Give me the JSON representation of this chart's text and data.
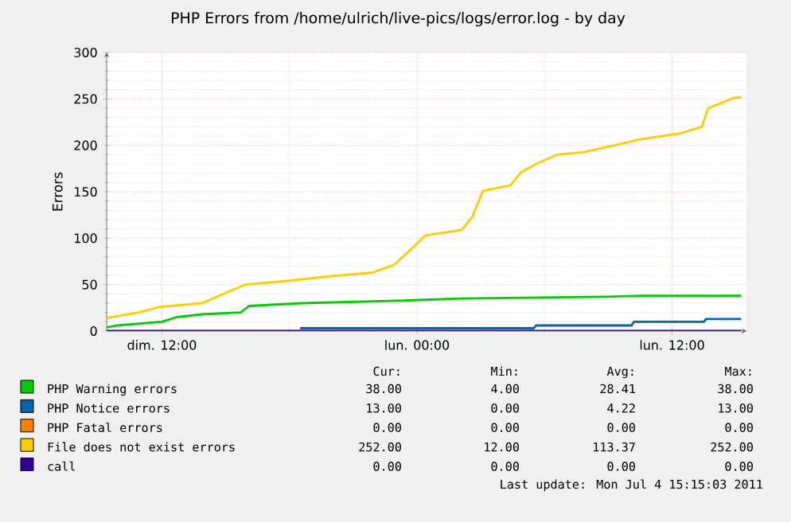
{
  "chart_data": {
    "type": "line",
    "title": "PHP Errors from  /home/ulrich/live-pics/logs/error.log - by day",
    "ylabel": "Errors",
    "xlim": [
      "2011-07-03T09:24",
      "2011-07-04T15:30"
    ],
    "ylim": [
      0,
      300
    ],
    "xticks": [
      {
        "value": "2011-07-03T12:00",
        "label": "dim. 12:00"
      },
      {
        "value": "2011-07-04T00:00",
        "label": "lun. 00:00"
      },
      {
        "value": "2011-07-04T12:00",
        "label": "lun. 12:00"
      }
    ],
    "yticks": [
      0,
      50,
      100,
      150,
      200,
      250,
      300
    ],
    "grid": true,
    "legend": "bottom",
    "marker": "none",
    "line_style": "solid",
    "series": [
      {
        "name": "PHP Warning errors",
        "color": "#00cc00",
        "x": [
          "2011-07-03T09:24",
          "2011-07-03T09:54",
          "2011-07-03T12:00",
          "2011-07-03T12:42",
          "2011-07-03T13:54",
          "2011-07-03T15:42",
          "2011-07-03T16:06",
          "2011-07-03T18:36",
          "2011-07-03T23:36",
          "2011-07-04T02:06",
          "2011-07-04T08:54",
          "2011-07-04T10:36",
          "2011-07-04T15:15"
        ],
        "values": [
          4,
          6,
          10,
          15,
          18,
          20,
          27,
          30,
          33,
          35,
          37,
          38,
          38
        ]
      },
      {
        "name": "PHP Notice errors",
        "color": "#0066b3",
        "x": [
          "2011-07-03T18:30",
          "2011-07-04T05:30",
          "2011-07-04T05:36",
          "2011-07-04T10:06",
          "2011-07-04T10:12",
          "2011-07-04T13:30",
          "2011-07-04T13:36",
          "2011-07-04T15:15"
        ],
        "values": [
          3,
          3,
          6,
          6,
          10,
          10,
          13,
          13
        ]
      },
      {
        "name": "PHP Fatal errors",
        "color": "#ff8000"
      },
      {
        "name": "File does not exist errors",
        "color": "#ffcc00",
        "x": [
          "2011-07-03T09:24",
          "2011-07-03T10:54",
          "2011-07-03T11:54",
          "2011-07-03T13:54",
          "2011-07-03T14:54",
          "2011-07-03T15:54",
          "2011-07-03T17:54",
          "2011-07-03T19:54",
          "2011-07-03T21:54",
          "2011-07-03T22:54",
          "2011-07-03T23:54",
          "2011-07-04T00:24",
          "2011-07-04T02:06",
          "2011-07-04T02:36",
          "2011-07-04T03:06",
          "2011-07-04T04:24",
          "2011-07-04T04:54",
          "2011-07-04T05:36",
          "2011-07-04T06:36",
          "2011-07-04T07:54",
          "2011-07-04T08:54",
          "2011-07-04T10:24",
          "2011-07-04T12:24",
          "2011-07-04T13:24",
          "2011-07-04T13:42",
          "2011-07-04T14:54",
          "2011-07-04T15:15"
        ],
        "values": [
          14,
          20,
          26,
          30,
          40,
          50,
          54,
          59,
          63,
          71,
          92,
          103,
          109,
          123,
          151,
          157,
          171,
          180,
          190,
          193,
          198,
          206,
          213,
          220,
          240,
          251,
          252
        ]
      },
      {
        "name": "call",
        "color": "#330099",
        "x": [
          "2011-07-03T09:24",
          "2011-07-04T15:15"
        ],
        "values": [
          0,
          0
        ]
      }
    ],
    "annotations": [
      "Cur:",
      "Min:",
      "Avg:",
      "Max:",
      "38.00",
      "4.00",
      "28.41",
      "38.00",
      "13.00",
      "0.00",
      "4.22",
      "13.00",
      "0.00",
      "0.00",
      "0.00",
      "0.00",
      "252.00",
      "12.00",
      "113.37",
      "252.00",
      "0.00",
      "0.00",
      "0.00",
      "0.00",
      "Last update:  Mon Jul  4 15:15:03 2011"
    ]
  }
}
